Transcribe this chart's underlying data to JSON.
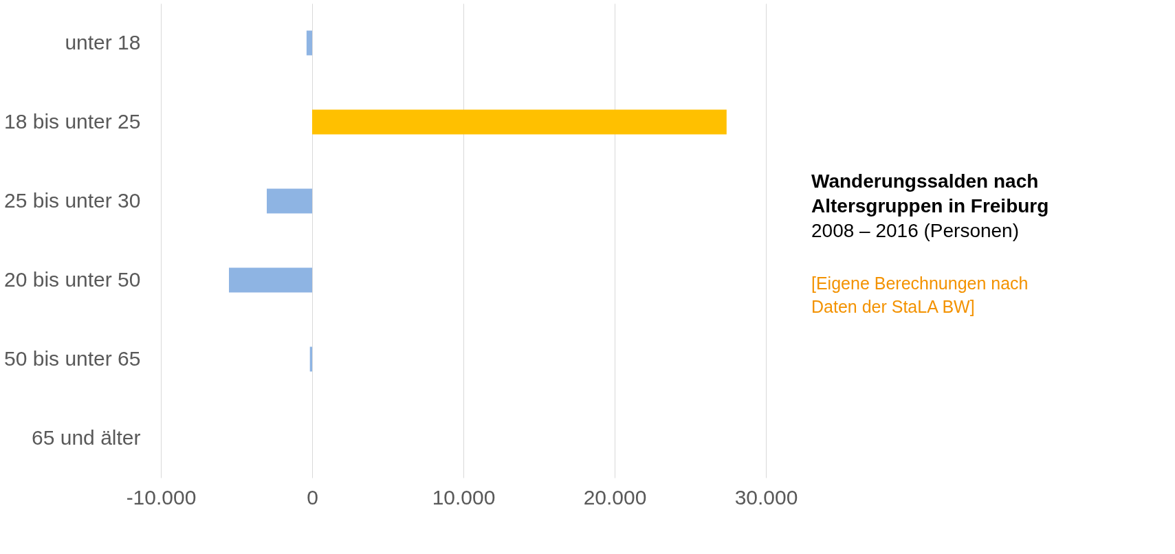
{
  "chart_data": {
    "type": "bar",
    "orientation": "horizontal",
    "title": "Wanderungssalden nach Altersgruppen in Freiburg",
    "subtitle": "2008 – 2016 (Personen)",
    "annotations": [
      "[Eigene Berechnungen nach Daten der StaLA BW]"
    ],
    "categories": [
      "unter 18",
      "18 bis unter 25",
      "25 bis unter 30",
      "20 bis unter 50",
      "50 bis unter 65",
      "65 und älter"
    ],
    "values": [
      -370,
      27400,
      -3000,
      -5500,
      -150,
      0
    ],
    "colors": [
      "#8eb4e3",
      "#ffc000",
      "#8eb4e3",
      "#8eb4e3",
      "#8eb4e3",
      "#8eb4e3"
    ],
    "xlim": [
      -10000,
      30000
    ],
    "xticks": [
      {
        "value": -10000,
        "label": "-10.000"
      },
      0,
      {
        "value": 10000,
        "label": "10.000"
      },
      {
        "value": 20000,
        "label": "20.000"
      },
      {
        "value": 30000,
        "label": "30.000"
      }
    ],
    "grid": "x"
  }
}
